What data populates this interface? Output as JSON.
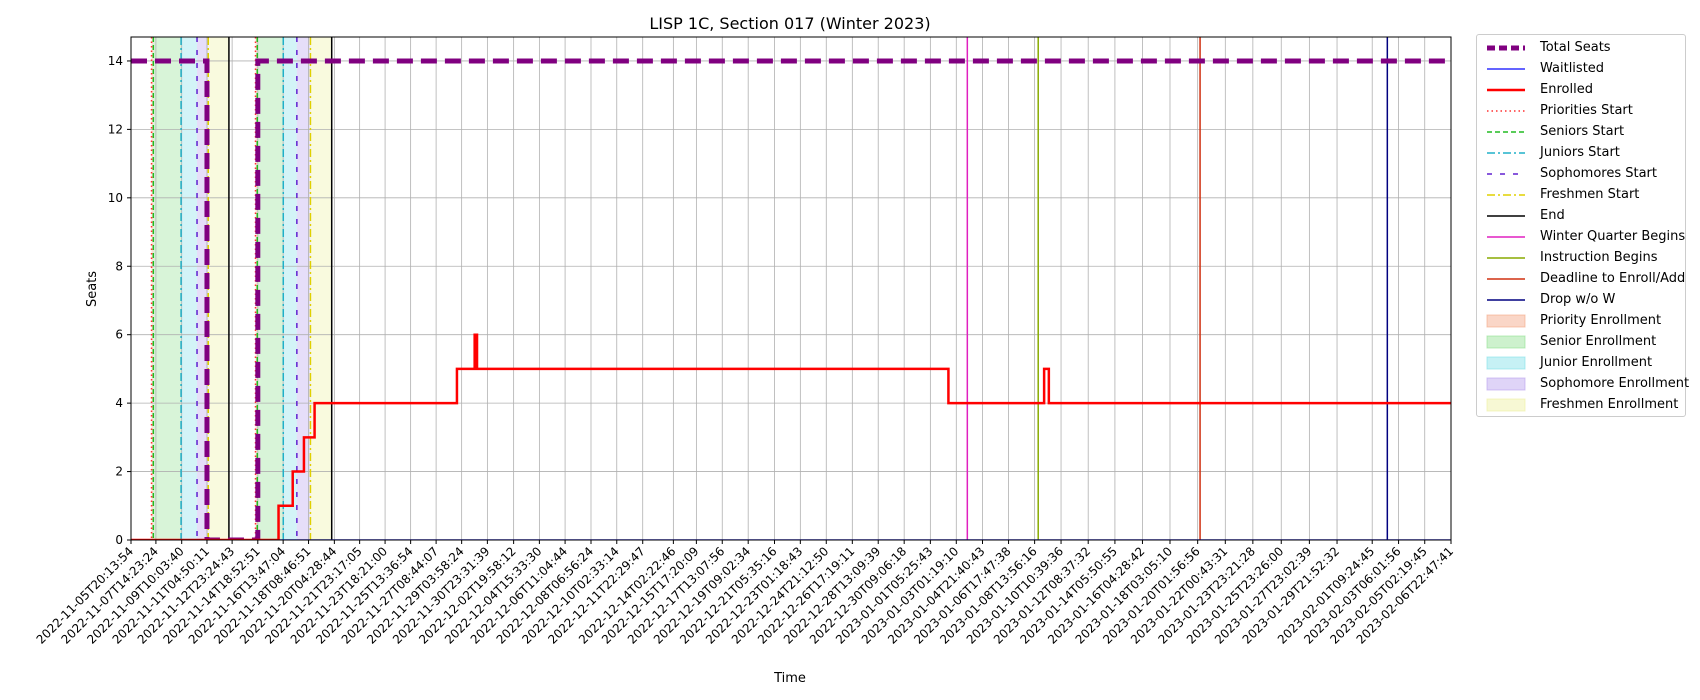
{
  "chart_data": {
    "type": "line",
    "title": "LISP 1C, Section 017 (Winter 2023)",
    "xlabel": "Time",
    "ylabel": "Seats",
    "ylim": [
      0,
      14.7
    ],
    "yticks": [
      0,
      2,
      4,
      6,
      8,
      10,
      12,
      14
    ],
    "grid": true,
    "legend_placement": "outside-right",
    "x_start": "2022-11-05T20:13:54",
    "x_end": "2023-02-06T22:47:41",
    "xticks": [
      "2022-11-05T20:13:54",
      "2022-11-07T14:23:24",
      "2022-11-09T10:03:40",
      "2022-11-11T04:50:11",
      "2022-11-12T23:24:43",
      "2022-11-14T18:52:51",
      "2022-11-16T13:47:04",
      "2022-11-18T08:46:51",
      "2022-11-20T04:28:44",
      "2022-11-21T23:17:05",
      "2022-11-23T18:21:00",
      "2022-11-25T13:36:54",
      "2022-11-27T08:44:07",
      "2022-11-29T03:58:24",
      "2022-11-30T23:31:39",
      "2022-12-02T19:58:12",
      "2022-12-04T15:33:30",
      "2022-12-06T11:04:44",
      "2022-12-08T06:56:24",
      "2022-12-10T02:33:14",
      "2022-12-11T22:29:47",
      "2022-12-14T02:22:46",
      "2022-12-15T17:20:09",
      "2022-12-17T13:07:56",
      "2022-12-19T09:02:34",
      "2022-12-21T05:35:16",
      "2022-12-23T01:18:43",
      "2022-12-24T21:12:50",
      "2022-12-26T17:19:11",
      "2022-12-28T13:09:39",
      "2022-12-30T09:06:18",
      "2023-01-01T05:25:43",
      "2023-01-03T01:19:10",
      "2023-01-04T21:40:43",
      "2023-01-06T17:47:38",
      "2023-01-08T13:56:16",
      "2023-01-10T10:39:36",
      "2023-01-12T08:37:32",
      "2023-01-14T05:50:55",
      "2023-01-16T04:28:42",
      "2023-01-18T03:05:10",
      "2023-01-20T01:56:56",
      "2023-01-22T00:43:31",
      "2023-01-23T23:21:28",
      "2023-01-25T23:26:00",
      "2023-01-27T23:02:39",
      "2023-01-29T21:52:32",
      "2023-02-01T09:24:45",
      "2023-02-03T06:01:56",
      "2023-02-05T02:19:45",
      "2023-02-06T22:47:41"
    ],
    "series": [
      {
        "name": "Total Seats",
        "color": "#800080",
        "style": "dashed-thick",
        "points": [
          [
            "2022-11-05T20:13:54",
            14
          ],
          [
            "2022-11-11T04:50:11",
            14
          ],
          [
            "2022-11-11T04:50:11",
            0
          ],
          [
            "2022-11-14T18:52:51",
            0
          ],
          [
            "2022-11-14T18:52:51",
            14
          ],
          [
            "2023-02-06T22:47:41",
            14
          ]
        ]
      },
      {
        "name": "Waitlisted",
        "color": "#3030ff",
        "style": "solid",
        "points": [
          [
            "2022-11-05T20:13:54",
            0
          ],
          [
            "2023-02-06T22:47:41",
            0
          ]
        ]
      },
      {
        "name": "Enrolled",
        "color": "#ff0000",
        "style": "solid-thick",
        "points": [
          [
            "2022-11-05T20:13:54",
            0
          ],
          [
            "2022-11-16T06:00:00",
            0
          ],
          [
            "2022-11-16T06:00:00",
            1
          ],
          [
            "2022-11-17T06:00:00",
            1
          ],
          [
            "2022-11-17T06:00:00",
            2
          ],
          [
            "2022-11-18T01:00:00",
            2
          ],
          [
            "2022-11-18T01:00:00",
            3
          ],
          [
            "2022-11-18T19:00:00",
            3
          ],
          [
            "2022-11-18T19:00:00",
            4
          ],
          [
            "2022-11-28T20:00:00",
            4
          ],
          [
            "2022-11-28T20:00:00",
            5
          ],
          [
            "2022-11-30T02:00:00",
            5
          ],
          [
            "2022-11-30T02:00:00",
            6
          ],
          [
            "2022-11-30T06:00:00",
            6
          ],
          [
            "2022-11-30T06:00:00",
            5
          ],
          [
            "2023-01-02T12:00:00",
            5
          ],
          [
            "2023-01-02T12:00:00",
            4
          ],
          [
            "2023-01-09T06:00:00",
            4
          ],
          [
            "2023-01-09T06:00:00",
            5
          ],
          [
            "2023-01-09T14:00:00",
            5
          ],
          [
            "2023-01-09T14:00:00",
            4
          ],
          [
            "2023-02-06T22:47:41",
            4
          ]
        ]
      }
    ],
    "markers": [
      {
        "name": "Priorities Start",
        "color": "#ff3030",
        "style": "dotted",
        "x": [
          "2022-11-07T07:00:00",
          "2022-11-14T15:00:00"
        ]
      },
      {
        "name": "Seniors Start",
        "color": "#22bb22",
        "style": "dashed",
        "x": [
          "2022-11-07T10:00:00",
          "2022-11-14T18:00:00"
        ]
      },
      {
        "name": "Juniors Start",
        "color": "#20b0c8",
        "style": "dashdot",
        "x": [
          "2022-11-09T09:00:00",
          "2022-11-16T14:00:00"
        ]
      },
      {
        "name": "Sophomores Start",
        "color": "#6020d0",
        "style": "loose-dashed",
        "x": [
          "2022-11-10T12:00:00",
          "2022-11-17T13:00:00"
        ]
      },
      {
        "name": "Freshmen Start",
        "color": "#e0d000",
        "style": "dashdot",
        "x": [
          "2022-11-11T07:00:00",
          "2022-11-18T12:00:00"
        ]
      },
      {
        "name": "End",
        "color": "#000000",
        "style": "solid",
        "x": [
          "2022-11-12T18:00:00",
          "2022-11-20T00:00:00"
        ]
      },
      {
        "name": "Winter Quarter Begins",
        "color": "#e020c0",
        "style": "solid",
        "x": [
          "2023-01-03T20:00:00"
        ]
      },
      {
        "name": "Instruction Begins",
        "color": "#88aa00",
        "style": "solid",
        "x": [
          "2023-01-08T20:00:00"
        ]
      },
      {
        "name": "Deadline to Enroll/Add",
        "color": "#d03010",
        "style": "solid",
        "x": [
          "2023-01-20T06:00:00"
        ]
      },
      {
        "name": "Drop w/o W",
        "color": "#000080",
        "style": "solid",
        "x": [
          "2023-02-02T11:00:00"
        ]
      }
    ],
    "bands": [
      {
        "name": "Priority Enrollment",
        "color": "#f4a582",
        "ranges": [
          [
            "2022-11-07T07:00:00",
            "2022-11-07T10:00:00"
          ],
          [
            "2022-11-14T15:00:00",
            "2022-11-14T18:00:00"
          ]
        ]
      },
      {
        "name": "Senior Enrollment",
        "color": "#90e090",
        "ranges": [
          [
            "2022-11-07T10:00:00",
            "2022-11-09T09:00:00"
          ],
          [
            "2022-11-14T18:00:00",
            "2022-11-16T14:00:00"
          ]
        ]
      },
      {
        "name": "Junior Enrollment",
        "color": "#80e0e8",
        "ranges": [
          [
            "2022-11-09T09:00:00",
            "2022-11-10T12:00:00"
          ],
          [
            "2022-11-16T14:00:00",
            "2022-11-17T13:00:00"
          ]
        ]
      },
      {
        "name": "Sophomore Enrollment",
        "color": "#b8a0ee",
        "ranges": [
          [
            "2022-11-10T12:00:00",
            "2022-11-11T07:00:00"
          ],
          [
            "2022-11-17T13:00:00",
            "2022-11-18T12:00:00"
          ]
        ]
      },
      {
        "name": "Freshmen Enrollment",
        "color": "#eef0a0",
        "ranges": [
          [
            "2022-11-11T07:00:00",
            "2022-11-12T18:00:00"
          ],
          [
            "2022-11-18T12:00:00",
            "2022-11-20T00:00:00"
          ]
        ]
      }
    ],
    "legend": [
      {
        "label": "Total Seats",
        "kind": "line",
        "color": "#800080",
        "style": "dashed-thick"
      },
      {
        "label": "Waitlisted",
        "kind": "line",
        "color": "#3030ff",
        "style": "solid"
      },
      {
        "label": "Enrolled",
        "kind": "line",
        "color": "#ff0000",
        "style": "solid-thick"
      },
      {
        "label": "Priorities Start",
        "kind": "line",
        "color": "#ff3030",
        "style": "dotted"
      },
      {
        "label": "Seniors Start",
        "kind": "line",
        "color": "#22bb22",
        "style": "dashed"
      },
      {
        "label": "Juniors Start",
        "kind": "line",
        "color": "#20b0c8",
        "style": "dashdot"
      },
      {
        "label": "Sophomores Start",
        "kind": "line",
        "color": "#6020d0",
        "style": "loose-dashed"
      },
      {
        "label": "Freshmen Start",
        "kind": "line",
        "color": "#e0d000",
        "style": "dashdot"
      },
      {
        "label": "End",
        "kind": "line",
        "color": "#000000",
        "style": "solid"
      },
      {
        "label": "Winter Quarter Begins",
        "kind": "line",
        "color": "#e020c0",
        "style": "solid"
      },
      {
        "label": "Instruction Begins",
        "kind": "line",
        "color": "#88aa00",
        "style": "solid"
      },
      {
        "label": "Deadline to Enroll/Add",
        "kind": "line",
        "color": "#d03010",
        "style": "solid"
      },
      {
        "label": "Drop w/o W",
        "kind": "line",
        "color": "#000080",
        "style": "solid"
      },
      {
        "label": "Priority Enrollment",
        "kind": "patch",
        "color": "#f4a582"
      },
      {
        "label": "Senior Enrollment",
        "kind": "patch",
        "color": "#90e090"
      },
      {
        "label": "Junior Enrollment",
        "kind": "patch",
        "color": "#80e0e8"
      },
      {
        "label": "Sophomore Enrollment",
        "kind": "patch",
        "color": "#b8a0ee"
      },
      {
        "label": "Freshmen Enrollment",
        "kind": "patch",
        "color": "#eef0a0"
      }
    ]
  }
}
